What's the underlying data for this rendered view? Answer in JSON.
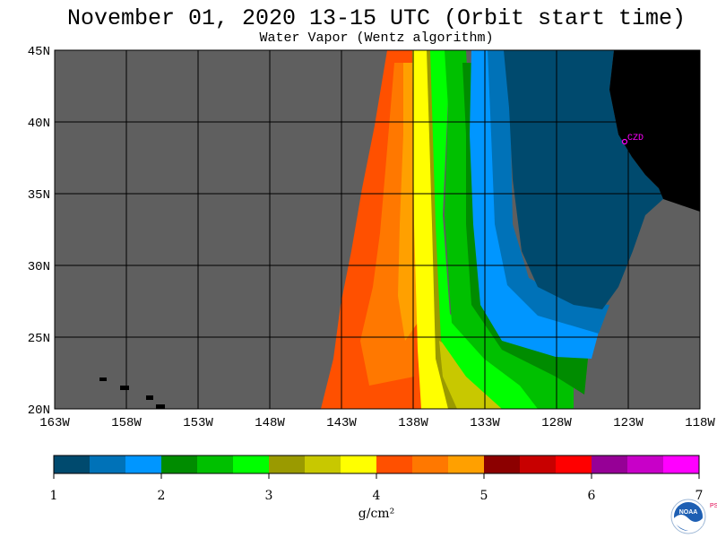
{
  "title": "November 01, 2020  13-15 UTC  (Orbit start time)",
  "subtitle": "Water Vapor (Wentz algorithm)",
  "map": {
    "lat_labels": [
      "45N",
      "40N",
      "35N",
      "30N",
      "25N",
      "20N"
    ],
    "lon_labels": [
      "163W",
      "158W",
      "153W",
      "148W",
      "143W",
      "138W",
      "133W",
      "128W",
      "123W",
      "118W"
    ],
    "station_label": "CZD",
    "colors": {
      "no_data": "#5f5f5f",
      "land": "#000000",
      "station": "#ff00ff"
    }
  },
  "colorbar": {
    "tick_labels": [
      "1",
      "2",
      "3",
      "4",
      "5",
      "6",
      "7"
    ],
    "unit": "g/cm²",
    "colors": [
      "#004a6e",
      "#0072b8",
      "#0096ff",
      "#008c00",
      "#00c000",
      "#00ff00",
      "#9a9a00",
      "#c8c800",
      "#ffff00",
      "#ff5000",
      "#ff7800",
      "#ffa000",
      "#8c0000",
      "#c80000",
      "#ff0000",
      "#960096",
      "#c800c8",
      "#ff00ff"
    ]
  },
  "logo": {
    "text": "NOAA",
    "side_text": "PSL"
  }
}
